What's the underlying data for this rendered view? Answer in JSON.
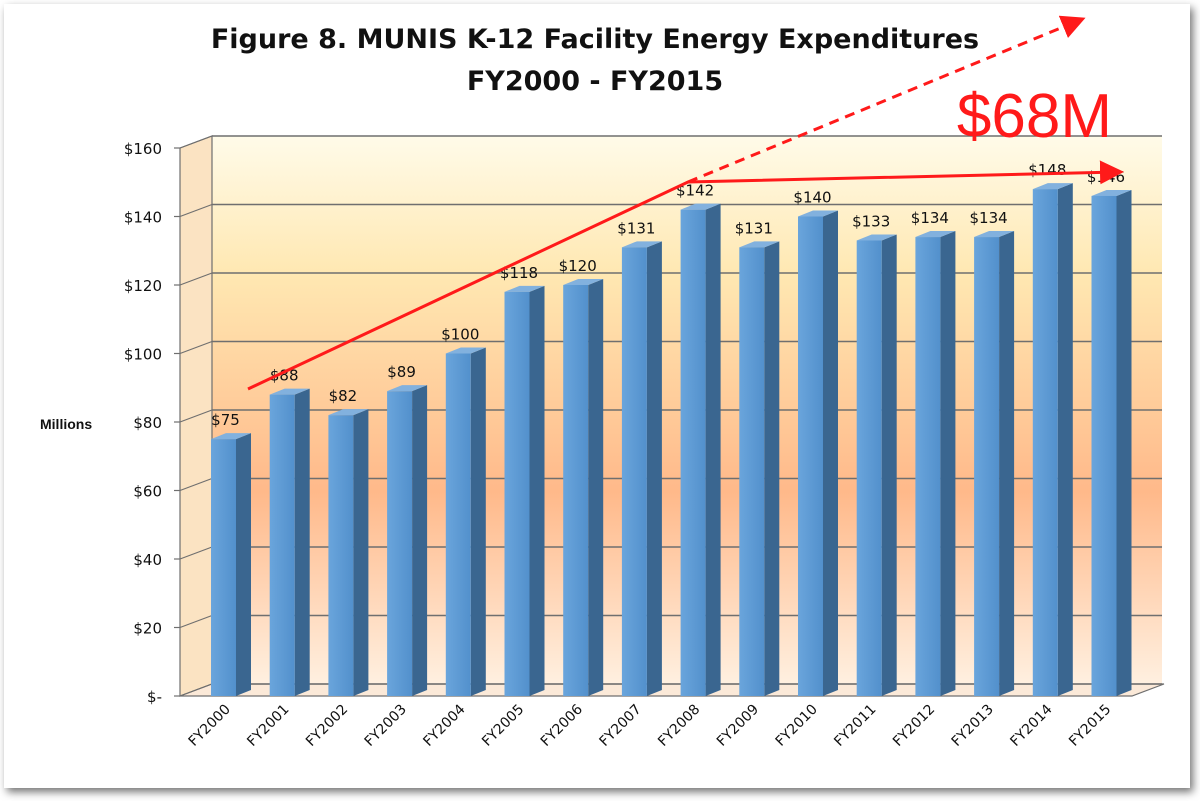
{
  "chart_data": {
    "type": "bar",
    "title": "Figure 8.  MUNIS K-12 Facility Energy Expenditures",
    "subtitle": "FY2000 - FY2015",
    "ylabel": "Millions",
    "ylim": [
      0,
      160
    ],
    "yticks": [
      {
        "value": 0,
        "label": "$-"
      },
      {
        "value": 20,
        "label": "$20"
      },
      {
        "value": 40,
        "label": "$40"
      },
      {
        "value": 60,
        "label": "$60"
      },
      {
        "value": 80,
        "label": "$80"
      },
      {
        "value": 100,
        "label": "$100"
      },
      {
        "value": 120,
        "label": "$120"
      },
      {
        "value": 140,
        "label": "$140"
      },
      {
        "value": 160,
        "label": "$160"
      }
    ],
    "categories": [
      "FY2000",
      "FY2001",
      "FY2002",
      "FY2003",
      "FY2004",
      "FY2005",
      "FY2006",
      "FY2007",
      "FY2008",
      "FY2009",
      "FY2010",
      "FY2011",
      "FY2012",
      "FY2013",
      "FY2014",
      "FY2015"
    ],
    "values": [
      75,
      88,
      82,
      89,
      100,
      118,
      120,
      131,
      142,
      131,
      140,
      133,
      134,
      134,
      148,
      146
    ],
    "value_labels": [
      "$75",
      "$88",
      "$82",
      "$89",
      "$100",
      "$118",
      "$120",
      "$131",
      "$142",
      "$131",
      "$140",
      "$133",
      "$134",
      "$134",
      "$148",
      "$146"
    ],
    "grid": true,
    "annotation": "$68M",
    "colors": {
      "bar": "#5b9bd5",
      "bar_side": "#3a6690",
      "bar_top": "#82b1de",
      "annotation": "#ff1a1a"
    }
  }
}
